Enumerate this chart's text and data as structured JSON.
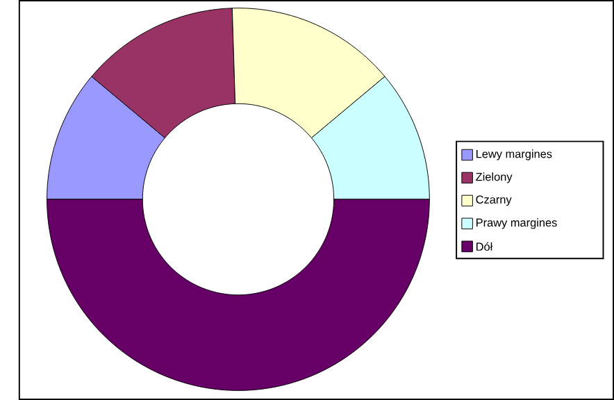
{
  "chart_data": {
    "type": "donut",
    "categories": [
      "Lewy margines",
      "Zielony",
      "Czarny",
      "Prawy margines",
      "Dół"
    ],
    "values": [
      11.1,
      13.4,
      14.4,
      11.1,
      50
    ],
    "colors": [
      "#9999ff",
      "#993366",
      "#ffffcc",
      "#ccffff",
      "#660066"
    ],
    "legend": "right"
  }
}
